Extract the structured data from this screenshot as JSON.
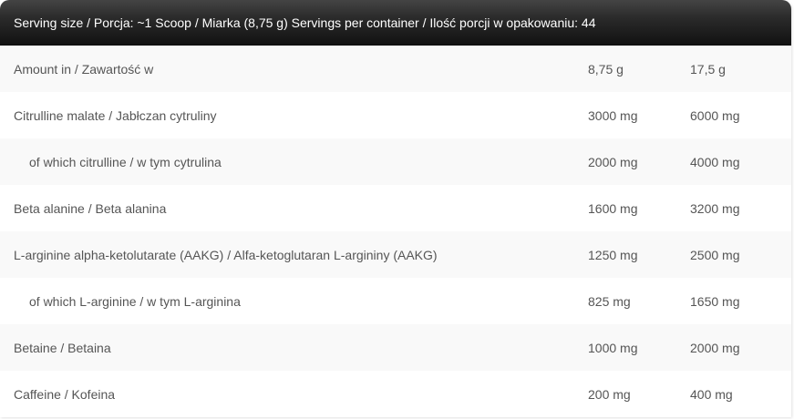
{
  "header": "Serving size / Porcja: ~1 Scoop / Miarka (8,75 g) Servings per container / Ilość porcji w opakowaniu: 44",
  "rows": [
    {
      "name": "Amount in / Zawartość w",
      "a": "8,75 g",
      "b": "17,5 g",
      "indent": false
    },
    {
      "name": "Citrulline malate / Jabłczan cytruliny",
      "a": "3000 mg",
      "b": "6000 mg",
      "indent": false
    },
    {
      "name": "of which citrulline / w tym cytrulina",
      "a": "2000 mg",
      "b": "4000 mg",
      "indent": true
    },
    {
      "name": "Beta alanine / Beta alanina",
      "a": "1600 mg",
      "b": "3200 mg",
      "indent": false
    },
    {
      "name": "L-arginine alpha-ketolutarate (AAKG) / Alfa-ketoglutaran L-argininy (AAKG)",
      "a": "1250 mg",
      "b": "2500 mg",
      "indent": false
    },
    {
      "name": "of which L-arginine / w tym L-arginina",
      "a": "825 mg",
      "b": "1650 mg",
      "indent": true
    },
    {
      "name": "Betaine / Betaina",
      "a": "1000 mg",
      "b": "2000 mg",
      "indent": false
    },
    {
      "name": "Caffeine / Kofeina",
      "a": "200 mg",
      "b": "400 mg",
      "indent": false
    }
  ]
}
